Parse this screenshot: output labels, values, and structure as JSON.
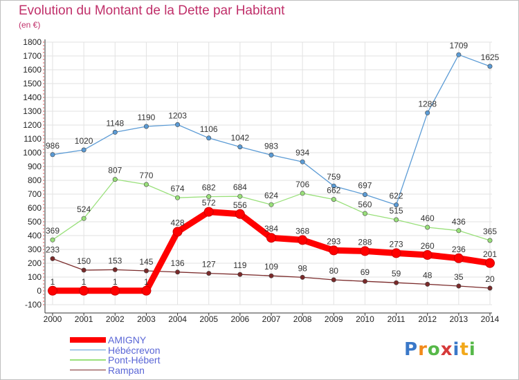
{
  "chart_data": {
    "type": "line",
    "title": "Evolution du Montant de la Dette par Habitant",
    "subtitle": "(en €)",
    "x": [
      "2000",
      "2001",
      "2002",
      "2003",
      "2004",
      "2005",
      "2006",
      "2007",
      "2008",
      "2009",
      "2010",
      "2011",
      "2012",
      "2013",
      "2014"
    ],
    "yticks": [
      -100,
      0,
      100,
      200,
      300,
      400,
      500,
      600,
      700,
      800,
      900,
      1000,
      1100,
      1200,
      1300,
      1400,
      1500,
      1600,
      1700,
      1800
    ],
    "ylim": [
      -100,
      1800
    ],
    "grid": true,
    "legend_position": "bottom-left",
    "series": [
      {
        "name": "AMIGNY",
        "color": "#ff0000",
        "values": [
          1,
          1,
          1,
          1,
          428,
          572,
          556,
          384,
          368,
          293,
          288,
          273,
          260,
          236,
          201
        ]
      },
      {
        "name": "Hébécrevon",
        "color": "#5b9bd5",
        "values": [
          986,
          1020,
          1148,
          1190,
          1203,
          1106,
          1042,
          983,
          934,
          759,
          697,
          622,
          1288,
          1709,
          1625
        ]
      },
      {
        "name": "Pont-Hébert",
        "color": "#99e07a",
        "values": [
          369,
          524,
          807,
          770,
          674,
          682,
          684,
          624,
          706,
          662,
          560,
          515,
          460,
          436,
          365
        ]
      },
      {
        "name": "Rampan",
        "color": "#7a2a2a",
        "values": [
          233,
          150,
          153,
          145,
          136,
          127,
          119,
          109,
          98,
          80,
          69,
          59,
          48,
          35,
          20
        ]
      }
    ]
  },
  "logo": {
    "letters": [
      "P",
      "r",
      "o",
      "x",
      "i",
      "t",
      "i"
    ],
    "colors": [
      "#3a78c8",
      "#f28a1a",
      "#56b848",
      "#d63a3a",
      "#3a78c8",
      "#f2a81a",
      "#56b848"
    ]
  }
}
